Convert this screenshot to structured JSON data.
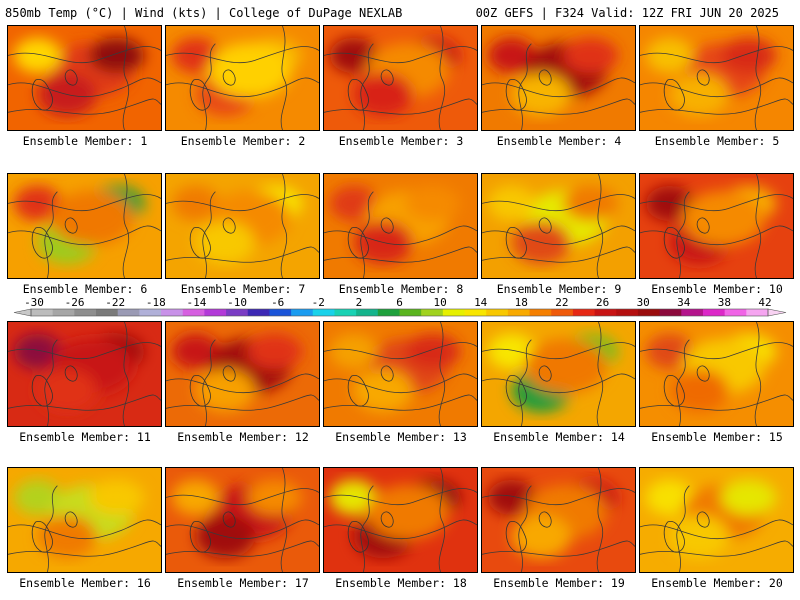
{
  "header": {
    "left": "850mb Temp (°C) | Wind (kts) | College of DuPage NEXLAB",
    "right": "00Z GEFS | F324 Valid: 12Z FRI JUN 20 2025"
  },
  "colorbar": {
    "labels": [
      "-30",
      "-26",
      "-22",
      "-18",
      "-14",
      "-10",
      "-6",
      "-2",
      "2",
      "6",
      "10",
      "14",
      "18",
      "22",
      "26",
      "30",
      "34",
      "38",
      "42"
    ],
    "colors": [
      "#bcbcbc",
      "#a6a6a6",
      "#8e8e8e",
      "#7a7a7a",
      "#9a9ab4",
      "#b0b0d8",
      "#c891e8",
      "#d65fe0",
      "#b23ad8",
      "#7a3cc4",
      "#3c28b4",
      "#1a54d8",
      "#1a9cf0",
      "#19d2ea",
      "#19d2b4",
      "#14b48c",
      "#1ea03c",
      "#5ab41e",
      "#a0d21e",
      "#e6f000",
      "#f8e600",
      "#f8c800",
      "#f8aa00",
      "#f57f00",
      "#ef5a0a",
      "#e62814",
      "#c81414",
      "#b40f0f",
      "#9a0c0c",
      "#8c0a3c",
      "#b4148c",
      "#dc28c8",
      "#f064e6",
      "#f5a5f0"
    ]
  },
  "members": [
    {
      "label": "Ensemble Member: 1",
      "base": "#f16400",
      "blobs": [
        {
          "c": "#e03a14"
        },
        {
          "c": "#c81e1e"
        },
        {
          "c": "#8e0c0c"
        },
        {
          "c": "#ffd700"
        }
      ]
    },
    {
      "label": "Ensemble Member: 2",
      "base": "#f58a00",
      "blobs": [
        {
          "c": "#e84a14"
        },
        {
          "c": "#f8b400"
        },
        {
          "c": "#e03214"
        },
        {
          "c": "#ffd000"
        }
      ]
    },
    {
      "label": "Ensemble Member: 3",
      "base": "#ee5a0a",
      "blobs": [
        {
          "c": "#c81414"
        },
        {
          "c": "#a01010"
        },
        {
          "c": "#f58a00"
        },
        {
          "c": "#d82214"
        }
      ]
    },
    {
      "label": "Ensemble Member: 4",
      "base": "#f07a00",
      "blobs": [
        {
          "c": "#c81414"
        },
        {
          "c": "#a00c0c"
        },
        {
          "c": "#f8b400"
        },
        {
          "c": "#e03214"
        }
      ]
    },
    {
      "label": "Ensemble Member: 5",
      "base": "#f58600",
      "blobs": [
        {
          "c": "#e64614"
        },
        {
          "c": "#f8b000"
        },
        {
          "c": "#d82a14"
        },
        {
          "c": "#f8c000"
        }
      ]
    },
    {
      "label": "Ensemble Member: 6",
      "base": "#f6a000",
      "blobs": [
        {
          "c": "#9ccc1e"
        },
        {
          "c": "#1e9c3c"
        },
        {
          "c": "#e03214"
        },
        {
          "c": "#f07800"
        }
      ]
    },
    {
      "label": "Ensemble Member: 7",
      "base": "#f4a400",
      "blobs": [
        {
          "c": "#f8e600"
        },
        {
          "c": "#f07a00"
        },
        {
          "c": "#f58a00"
        },
        {
          "c": "#f8c800"
        }
      ]
    },
    {
      "label": "Ensemble Member: 8",
      "base": "#f07a00",
      "blobs": [
        {
          "c": "#e03a14"
        },
        {
          "c": "#f8a000"
        },
        {
          "c": "#d82814"
        },
        {
          "c": "#f58a00"
        }
      ]
    },
    {
      "label": "Ensemble Member: 9",
      "base": "#f3a000",
      "blobs": [
        {
          "c": "#e6ea00"
        },
        {
          "c": "#e04a14"
        },
        {
          "c": "#f07a00"
        },
        {
          "c": "#f8c800"
        }
      ]
    },
    {
      "label": "Ensemble Member: 10",
      "base": "#e6410f",
      "blobs": [
        {
          "c": "#c81414"
        },
        {
          "c": "#f8b000"
        },
        {
          "c": "#a00c0c"
        },
        {
          "c": "#f58a00"
        }
      ]
    },
    {
      "label": "Ensemble Member: 11",
      "base": "#d82a14",
      "blobs": [
        {
          "c": "#a00c0c"
        },
        {
          "c": "#8c0a3c"
        },
        {
          "c": "#c81414"
        },
        {
          "c": "#e03214"
        }
      ]
    },
    {
      "label": "Ensemble Member: 12",
      "base": "#ec6a06",
      "blobs": [
        {
          "c": "#c81414"
        },
        {
          "c": "#a00c0c"
        },
        {
          "c": "#f8a000"
        },
        {
          "c": "#e03214"
        }
      ]
    },
    {
      "label": "Ensemble Member: 13",
      "base": "#f07a00",
      "blobs": [
        {
          "c": "#e04614"
        },
        {
          "c": "#f8a800"
        },
        {
          "c": "#d82a14"
        },
        {
          "c": "#f5a000"
        }
      ]
    },
    {
      "label": "Ensemble Member: 14",
      "base": "#f4a600",
      "blobs": [
        {
          "c": "#1e9c3c"
        },
        {
          "c": "#78be1e"
        },
        {
          "c": "#f8e600"
        },
        {
          "c": "#f07800"
        }
      ]
    },
    {
      "label": "Ensemble Member: 15",
      "base": "#f58e00",
      "blobs": [
        {
          "c": "#f8e000"
        },
        {
          "c": "#e04a14"
        },
        {
          "c": "#f8c800"
        },
        {
          "c": "#ef6a06"
        }
      ]
    },
    {
      "label": "Ensemble Member: 16",
      "base": "#f6a800",
      "blobs": [
        {
          "c": "#b4d21e"
        },
        {
          "c": "#c8dc1e"
        },
        {
          "c": "#f07a00"
        },
        {
          "c": "#f8c800"
        }
      ]
    },
    {
      "label": "Ensemble Member: 17",
      "base": "#ea5a0a",
      "blobs": [
        {
          "c": "#c81414"
        },
        {
          "c": "#a00c0c"
        },
        {
          "c": "#f58a00"
        },
        {
          "c": "#f8a800"
        }
      ]
    },
    {
      "label": "Ensemble Member: 18",
      "base": "#e0320f",
      "blobs": [
        {
          "c": "#a00c0c"
        },
        {
          "c": "#8c0a0a"
        },
        {
          "c": "#e6e600"
        },
        {
          "c": "#f07a00"
        }
      ]
    },
    {
      "label": "Ensemble Member: 19",
      "base": "#e84a0e",
      "blobs": [
        {
          "c": "#c81414"
        },
        {
          "c": "#a00c0c"
        },
        {
          "c": "#f07a00"
        },
        {
          "c": "#f8a800"
        }
      ]
    },
    {
      "label": "Ensemble Member: 20",
      "base": "#f6ac00",
      "blobs": [
        {
          "c": "#f8e000"
        },
        {
          "c": "#f07a00"
        },
        {
          "c": "#f8c800"
        },
        {
          "c": "#e6e600"
        }
      ]
    }
  ]
}
